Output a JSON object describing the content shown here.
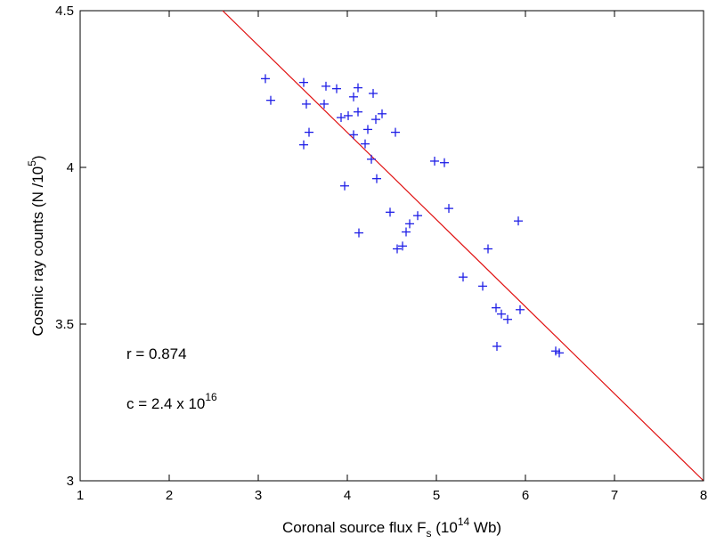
{
  "chart_data": {
    "type": "scatter",
    "xlabel": "Coronal source flux F",
    "xlabel_sub": "s",
    "xlabel_unit_pre": " (10",
    "xlabel_unit_sup": "14",
    "xlabel_unit_post": " Wb)",
    "ylabel": "Cosmic ray counts (N /10",
    "ylabel_sup": "5",
    "ylabel_post": ")",
    "xlim": [
      1,
      8
    ],
    "ylim": [
      3,
      4.5
    ],
    "xticks": [
      "1",
      "2",
      "3",
      "4",
      "5",
      "6",
      "7",
      "8"
    ],
    "yticks": [
      "3",
      "3.5",
      "4",
      "4.5"
    ],
    "grid": false,
    "point_marker": "+",
    "point_color": "#1f1fe6",
    "fit_line_color": "#e01010",
    "fit_line": {
      "x": [
        2.6,
        8.0
      ],
      "y": [
        4.5,
        3.0
      ]
    },
    "annotations": {
      "r": "r = 0.874",
      "c_base": "c = 2.4 x 10",
      "c_exp": "16"
    },
    "points": [
      {
        "x": 3.08,
        "y": 4.283
      },
      {
        "x": 3.14,
        "y": 4.214
      },
      {
        "x": 3.51,
        "y": 4.271
      },
      {
        "x": 3.54,
        "y": 4.202
      },
      {
        "x": 3.57,
        "y": 4.112
      },
      {
        "x": 3.51,
        "y": 4.072
      },
      {
        "x": 3.74,
        "y": 4.202
      },
      {
        "x": 3.76,
        "y": 4.259
      },
      {
        "x": 3.88,
        "y": 4.251
      },
      {
        "x": 3.93,
        "y": 4.159
      },
      {
        "x": 4.01,
        "y": 4.165
      },
      {
        "x": 4.07,
        "y": 4.225
      },
      {
        "x": 4.12,
        "y": 4.254
      },
      {
        "x": 4.12,
        "y": 4.177
      },
      {
        "x": 4.07,
        "y": 4.104
      },
      {
        "x": 4.2,
        "y": 4.075
      },
      {
        "x": 4.23,
        "y": 4.121
      },
      {
        "x": 4.27,
        "y": 4.026
      },
      {
        "x": 4.29,
        "y": 4.236
      },
      {
        "x": 4.32,
        "y": 4.153
      },
      {
        "x": 4.39,
        "y": 4.171
      },
      {
        "x": 4.33,
        "y": 3.964
      },
      {
        "x": 3.97,
        "y": 3.941
      },
      {
        "x": 4.13,
        "y": 3.791
      },
      {
        "x": 4.48,
        "y": 3.857
      },
      {
        "x": 4.54,
        "y": 4.112
      },
      {
        "x": 4.56,
        "y": 3.74
      },
      {
        "x": 4.62,
        "y": 3.749
      },
      {
        "x": 4.66,
        "y": 3.794
      },
      {
        "x": 4.7,
        "y": 3.82
      },
      {
        "x": 4.79,
        "y": 3.846
      },
      {
        "x": 4.98,
        "y": 4.02
      },
      {
        "x": 5.09,
        "y": 4.015
      },
      {
        "x": 5.14,
        "y": 3.869
      },
      {
        "x": 5.3,
        "y": 3.65
      },
      {
        "x": 5.52,
        "y": 3.621
      },
      {
        "x": 5.58,
        "y": 3.74
      },
      {
        "x": 5.92,
        "y": 3.829
      },
      {
        "x": 5.67,
        "y": 3.552
      },
      {
        "x": 5.73,
        "y": 3.532
      },
      {
        "x": 5.8,
        "y": 3.515
      },
      {
        "x": 5.68,
        "y": 3.429
      },
      {
        "x": 5.94,
        "y": 3.546
      },
      {
        "x": 6.34,
        "y": 3.414
      },
      {
        "x": 6.38,
        "y": 3.408
      }
    ]
  }
}
